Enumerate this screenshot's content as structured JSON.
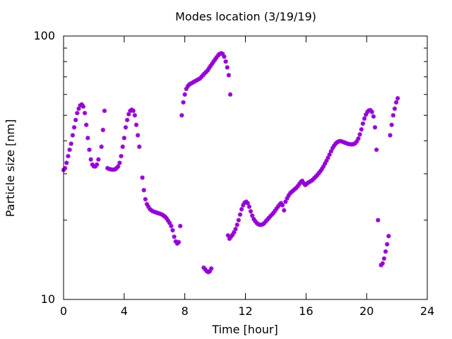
{
  "chart_data": {
    "type": "scatter",
    "title": "Modes location (3/19/19)",
    "xlabel": "Time [hour]",
    "ylabel": "Particle size [nm]",
    "xlim": [
      0,
      24
    ],
    "ylim": [
      10,
      100
    ],
    "yscale": "log",
    "grid": false,
    "x_ticks": [
      0,
      4,
      8,
      12,
      16,
      20,
      24
    ],
    "x_tick_labels": [
      "0",
      "4",
      "8",
      "12",
      "16",
      "20",
      "24"
    ],
    "y_ticks": [
      10,
      100
    ],
    "y_tick_labels": [
      "10",
      "100"
    ],
    "series": [
      {
        "color": "#9400d3",
        "marker": "star",
        "points": [
          [
            0.0,
            31
          ],
          [
            0.1,
            31.5
          ],
          [
            0.2,
            33
          ],
          [
            0.3,
            35
          ],
          [
            0.4,
            37
          ],
          [
            0.5,
            39
          ],
          [
            0.6,
            42
          ],
          [
            0.7,
            45
          ],
          [
            0.8,
            48
          ],
          [
            0.9,
            51
          ],
          [
            1.0,
            53
          ],
          [
            1.1,
            54.5
          ],
          [
            1.2,
            55
          ],
          [
            1.3,
            54
          ],
          [
            1.4,
            51
          ],
          [
            1.5,
            46
          ],
          [
            1.6,
            41
          ],
          [
            1.7,
            37
          ],
          [
            1.8,
            34
          ],
          [
            1.9,
            32.5
          ],
          [
            2.0,
            32
          ],
          [
            2.1,
            32
          ],
          [
            2.2,
            32.5
          ],
          [
            2.3,
            34
          ],
          [
            2.5,
            38
          ],
          [
            2.6,
            44
          ],
          [
            2.7,
            52
          ],
          [
            2.9,
            31.5
          ],
          [
            3.0,
            31.3
          ],
          [
            3.1,
            31.2
          ],
          [
            3.2,
            31.1
          ],
          [
            3.3,
            31.1
          ],
          [
            3.4,
            31.2
          ],
          [
            3.5,
            31.5
          ],
          [
            3.6,
            32
          ],
          [
            3.7,
            33
          ],
          [
            3.8,
            35
          ],
          [
            3.9,
            38
          ],
          [
            4.0,
            41
          ],
          [
            4.1,
            45
          ],
          [
            4.2,
            48
          ],
          [
            4.3,
            50.5
          ],
          [
            4.4,
            52
          ],
          [
            4.5,
            52.5
          ],
          [
            4.6,
            52
          ],
          [
            4.7,
            50
          ],
          [
            4.8,
            46
          ],
          [
            4.9,
            42
          ],
          [
            5.0,
            38
          ],
          [
            5.2,
            29
          ],
          [
            5.3,
            26
          ],
          [
            5.4,
            24
          ],
          [
            5.5,
            23
          ],
          [
            5.6,
            22.5
          ],
          [
            5.7,
            22
          ],
          [
            5.8,
            21.8
          ],
          [
            5.9,
            21.6
          ],
          [
            6.0,
            21.5
          ],
          [
            6.1,
            21.4
          ],
          [
            6.2,
            21.3
          ],
          [
            6.3,
            21.2
          ],
          [
            6.4,
            21.1
          ],
          [
            6.5,
            21
          ],
          [
            6.6,
            20.8
          ],
          [
            6.7,
            20.6
          ],
          [
            6.8,
            20.3
          ],
          [
            6.9,
            19.9
          ],
          [
            7.0,
            19.5
          ],
          [
            7.1,
            19
          ],
          [
            7.2,
            18.3
          ],
          [
            7.3,
            17.3
          ],
          [
            7.4,
            16.6
          ],
          [
            7.5,
            16.3
          ],
          [
            7.6,
            16.5
          ],
          [
            7.7,
            19
          ],
          [
            7.8,
            50
          ],
          [
            7.9,
            56
          ],
          [
            8.0,
            60
          ],
          [
            8.1,
            63
          ],
          [
            8.2,
            64.5
          ],
          [
            8.3,
            65.5
          ],
          [
            8.4,
            66
          ],
          [
            8.5,
            66.5
          ],
          [
            8.6,
            67
          ],
          [
            8.7,
            67.5
          ],
          [
            8.8,
            68
          ],
          [
            8.9,
            68.5
          ],
          [
            9.0,
            69
          ],
          [
            9.1,
            70
          ],
          [
            9.2,
            71
          ],
          [
            9.3,
            72
          ],
          [
            9.4,
            73
          ],
          [
            9.5,
            74
          ],
          [
            9.6,
            75.5
          ],
          [
            9.7,
            77
          ],
          [
            9.8,
            78.5
          ],
          [
            9.9,
            80
          ],
          [
            10.0,
            81.5
          ],
          [
            10.1,
            83
          ],
          [
            10.2,
            84.5
          ],
          [
            10.3,
            85.5
          ],
          [
            10.4,
            86
          ],
          [
            10.5,
            85.5
          ],
          [
            10.6,
            83.5
          ],
          [
            10.7,
            80
          ],
          [
            10.8,
            76
          ],
          [
            10.9,
            71
          ],
          [
            11.0,
            60
          ],
          [
            9.25,
            13.2
          ],
          [
            9.35,
            13
          ],
          [
            9.45,
            12.8
          ],
          [
            9.55,
            12.7
          ],
          [
            9.65,
            12.8
          ],
          [
            9.75,
            13.1
          ],
          [
            10.85,
            17.5
          ],
          [
            10.95,
            17
          ],
          [
            11.05,
            17.3
          ],
          [
            11.15,
            17.6
          ],
          [
            11.25,
            18
          ],
          [
            11.35,
            18.5
          ],
          [
            11.45,
            19.2
          ],
          [
            11.55,
            20
          ],
          [
            11.65,
            21
          ],
          [
            11.75,
            22
          ],
          [
            11.85,
            22.8
          ],
          [
            11.95,
            23.3
          ],
          [
            12.05,
            23.5
          ],
          [
            12.15,
            23.2
          ],
          [
            12.25,
            22.5
          ],
          [
            12.35,
            21.6
          ],
          [
            12.45,
            20.8
          ],
          [
            12.55,
            20.2
          ],
          [
            12.65,
            19.8
          ],
          [
            12.75,
            19.5
          ],
          [
            12.85,
            19.3
          ],
          [
            12.95,
            19.2
          ],
          [
            13.05,
            19.2
          ],
          [
            13.15,
            19.3
          ],
          [
            13.25,
            19.5
          ],
          [
            13.35,
            19.8
          ],
          [
            13.45,
            20.1
          ],
          [
            13.55,
            20.4
          ],
          [
            13.65,
            20.7
          ],
          [
            13.75,
            21
          ],
          [
            13.85,
            21.3
          ],
          [
            13.95,
            21.7
          ],
          [
            14.05,
            22.1
          ],
          [
            14.15,
            22.5
          ],
          [
            14.25,
            22.9
          ],
          [
            14.35,
            23.2
          ],
          [
            14.45,
            22.8
          ],
          [
            14.55,
            21.8
          ],
          [
            14.65,
            23.5
          ],
          [
            14.75,
            24.2
          ],
          [
            14.85,
            24.8
          ],
          [
            14.95,
            25.3
          ],
          [
            15.05,
            25.6
          ],
          [
            15.15,
            25.9
          ],
          [
            15.25,
            26.2
          ],
          [
            15.35,
            26.5
          ],
          [
            15.45,
            26.9
          ],
          [
            15.55,
            27.4
          ],
          [
            15.65,
            27.9
          ],
          [
            15.75,
            28.2
          ],
          [
            15.85,
            27.6
          ],
          [
            15.95,
            27.2
          ],
          [
            16.05,
            27.5
          ],
          [
            16.15,
            27.8
          ],
          [
            16.25,
            28
          ],
          [
            16.35,
            28.2
          ],
          [
            16.45,
            28.5
          ],
          [
            16.55,
            28.9
          ],
          [
            16.65,
            29.3
          ],
          [
            16.75,
            29.7
          ],
          [
            16.85,
            30.2
          ],
          [
            16.95,
            30.7
          ],
          [
            17.05,
            31.3
          ],
          [
            17.15,
            32
          ],
          [
            17.25,
            32.8
          ],
          [
            17.35,
            33.6
          ],
          [
            17.45,
            34.5
          ],
          [
            17.55,
            35.5
          ],
          [
            17.65,
            36.5
          ],
          [
            17.75,
            37.5
          ],
          [
            17.85,
            38.3
          ],
          [
            17.95,
            39
          ],
          [
            18.05,
            39.5
          ],
          [
            18.15,
            39.8
          ],
          [
            18.25,
            39.9
          ],
          [
            18.35,
            39.8
          ],
          [
            18.45,
            39.6
          ],
          [
            18.55,
            39.4
          ],
          [
            18.65,
            39.2
          ],
          [
            18.75,
            39
          ],
          [
            18.85,
            38.9
          ],
          [
            18.95,
            38.8
          ],
          [
            19.05,
            38.8
          ],
          [
            19.15,
            38.9
          ],
          [
            19.25,
            39.2
          ],
          [
            19.35,
            39.8
          ],
          [
            19.45,
            40.8
          ],
          [
            19.55,
            42.3
          ],
          [
            19.65,
            44.2
          ],
          [
            19.75,
            46.5
          ],
          [
            19.85,
            48.6
          ],
          [
            19.95,
            50.3
          ],
          [
            20.05,
            51.5
          ],
          [
            20.15,
            52.2
          ],
          [
            20.25,
            52.3
          ],
          [
            20.35,
            51.5
          ],
          [
            20.45,
            49.5
          ],
          [
            20.55,
            45
          ],
          [
            20.65,
            37
          ],
          [
            20.75,
            20
          ],
          [
            20.95,
            13.5
          ],
          [
            21.05,
            13.7
          ],
          [
            21.15,
            14.3
          ],
          [
            21.25,
            15.2
          ],
          [
            21.35,
            16.2
          ],
          [
            21.45,
            17.4
          ],
          [
            21.55,
            42
          ],
          [
            21.65,
            46
          ],
          [
            21.75,
            50
          ],
          [
            21.85,
            53
          ],
          [
            21.95,
            56
          ],
          [
            22.05,
            58
          ]
        ]
      }
    ]
  }
}
